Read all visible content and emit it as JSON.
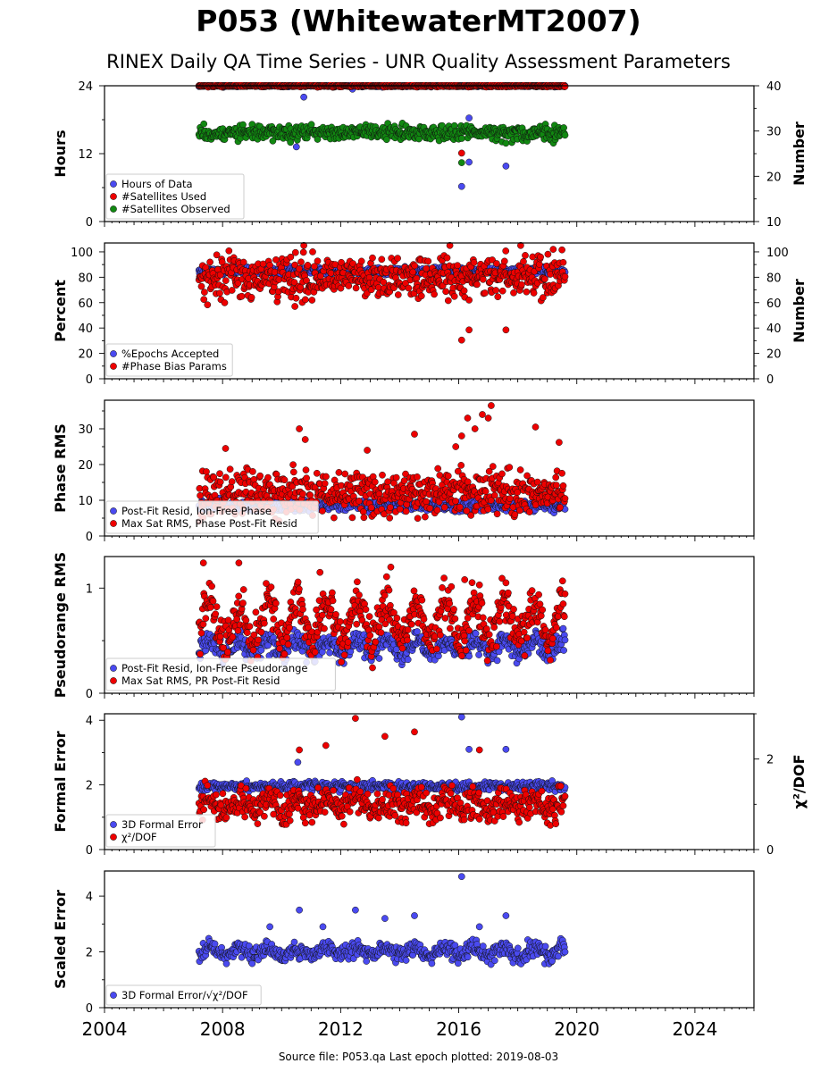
{
  "title": "P053 (WhitewaterMT2007)",
  "subtitle": "RINEX Daily QA Time Series - UNR Quality Assessment Parameters",
  "footer": "Source file: P053.qa Last epoch plotted: 2019-08-03",
  "colors": {
    "blue": "#4a4af0",
    "red": "#ee0000",
    "green": "#118811"
  },
  "chart_data": [
    {
      "type": "scatter",
      "xlim": [
        2004,
        2026
      ],
      "xticks": [
        2004,
        2008,
        2012,
        2016,
        2020,
        2024
      ],
      "ylabel": "Hours",
      "ylim": [
        0,
        24
      ],
      "yticks": [
        0,
        12,
        24
      ],
      "ylabel_right": "Number",
      "ylim_right": [
        10,
        40
      ],
      "yticks_right": [
        10,
        20,
        30,
        40
      ],
      "legend": [
        "Hours of Data",
        "#Satellites Used",
        "#Satellites Observed"
      ],
      "legend_placement": "lower-left",
      "series": [
        {
          "name": "Hours of Data",
          "color": "blue",
          "axis": "left",
          "x_range": [
            2007.2,
            2019.6
          ],
          "typical": 24,
          "spread": 0.1,
          "outliers": [
            [
              2010.75,
              22.0
            ],
            [
              2012.4,
              23.4
            ],
            [
              2016.1,
              6.2
            ],
            [
              2016.35,
              18.3
            ],
            [
              2016.35,
              10.5
            ],
            [
              2017.6,
              9.8
            ],
            [
              2010.5,
              13.2
            ]
          ]
        },
        {
          "name": "#Satellites Used",
          "color": "red",
          "axis": "left",
          "x_range": [
            2007.2,
            2019.6
          ],
          "typical": 24,
          "spread": 0.1,
          "outliers": [
            [
              2016.1,
              12.1
            ],
            [
              2009.7,
              16.0
            ]
          ]
        },
        {
          "name": "#Satellites Observed",
          "color": "green",
          "axis": "right",
          "x_range": [
            2007.2,
            2019.6
          ],
          "typical": 29.6,
          "spread": 0.8,
          "outliers": [
            [
              2016.1,
              23.0
            ],
            [
              2017.6,
              27.3
            ],
            [
              2010.3,
              27.5
            ],
            [
              2009.7,
              27.8
            ]
          ]
        }
      ]
    },
    {
      "type": "scatter",
      "xlim": [
        2004,
        2026
      ],
      "xticks": [
        2004,
        2008,
        2012,
        2016,
        2020,
        2024
      ],
      "ylabel": "Percent",
      "ylim": [
        0,
        107
      ],
      "yticks": [
        0,
        20,
        40,
        60,
        80,
        100
      ],
      "ylabel_right": "Number",
      "ylim_right": [
        0,
        107
      ],
      "yticks_right": [
        0,
        20,
        40,
        60,
        80,
        100
      ],
      "legend": [
        "%Epochs Accepted",
        "#Phase Bias Params"
      ],
      "legend_placement": "lower-left",
      "series": [
        {
          "name": "%Epochs Accepted",
          "color": "blue",
          "axis": "left",
          "x_range": [
            2007.2,
            2019.6
          ],
          "typical": 85,
          "spread": 1.5,
          "outliers": []
        },
        {
          "name": "#Phase Bias Params",
          "color": "red",
          "axis": "right",
          "x_range": [
            2007.2,
            2019.6
          ],
          "typical": 80,
          "spread": 8,
          "outliers": [
            [
              2016.1,
              30.5
            ],
            [
              2016.35,
              38.5
            ],
            [
              2017.6,
              38.5
            ],
            [
              2016.35,
              62
            ],
            [
              2010.45,
              57
            ],
            [
              2010.75,
              105
            ],
            [
              2015.7,
              105
            ],
            [
              2018.1,
              105
            ],
            [
              2019.2,
              102
            ]
          ]
        }
      ]
    },
    {
      "type": "scatter",
      "xlim": [
        2004,
        2026
      ],
      "xticks": [
        2004,
        2008,
        2012,
        2016,
        2020,
        2024
      ],
      "ylabel": "Phase RMS",
      "ylim": [
        0,
        38
      ],
      "yticks": [
        0,
        10,
        20,
        30
      ],
      "legend": [
        "Post-Fit Resid, Ion-Free Phase",
        "Max Sat RMS, Phase Post-Fit Resid"
      ],
      "legend_placement": "lower-left",
      "series": [
        {
          "name": "Post-Fit Resid, Ion-Free Phase",
          "color": "blue",
          "axis": "left",
          "x_range": [
            2007.2,
            2019.6
          ],
          "typical": 8.5,
          "spread": 0.8,
          "outliers": []
        },
        {
          "name": "Max Sat RMS, Phase Post-Fit Resid",
          "color": "red",
          "axis": "left",
          "x_range": [
            2007.2,
            2019.6
          ],
          "typical": 12,
          "spread": 3,
          "outliers": [
            [
              2010.6,
              30
            ],
            [
              2010.8,
              27
            ],
            [
              2014.5,
              28.5
            ],
            [
              2016.1,
              28
            ],
            [
              2016.3,
              33
            ],
            [
              2016.55,
              30
            ],
            [
              2016.8,
              34
            ],
            [
              2017.0,
              33
            ],
            [
              2017.1,
              36.5
            ],
            [
              2018.6,
              30.5
            ],
            [
              2019.4,
              26.2
            ],
            [
              2008.1,
              24.5
            ],
            [
              2012.9,
              24
            ],
            [
              2015.9,
              25
            ]
          ]
        }
      ]
    },
    {
      "type": "scatter",
      "xlim": [
        2004,
        2026
      ],
      "xticks": [
        2004,
        2008,
        2012,
        2016,
        2020,
        2024
      ],
      "ylabel": "Pseudorange RMS",
      "ylim": [
        0,
        1.3
      ],
      "yticks": [
        0,
        1
      ],
      "legend": [
        "Post-Fit Resid, Ion-Free Pseudorange",
        "Max Sat RMS, PR Post-Fit Resid"
      ],
      "legend_placement": "lower-left",
      "series": [
        {
          "name": "Post-Fit Resid, Ion-Free Pseudorange",
          "color": "blue",
          "axis": "left",
          "x_range": [
            2007.2,
            2019.6
          ],
          "typical": 0.44,
          "spread": 0.05,
          "seasonal": 0.06,
          "outliers": []
        },
        {
          "name": "Max Sat RMS, PR Post-Fit Resid",
          "color": "red",
          "axis": "left",
          "x_range": [
            2007.2,
            2019.6
          ],
          "typical": 0.68,
          "spread": 0.1,
          "seasonal": 0.18,
          "outliers": [
            [
              2007.35,
              1.24
            ],
            [
              2008.55,
              1.24
            ],
            [
              2013.7,
              1.2
            ],
            [
              2016.2,
              1.08
            ],
            [
              2016.7,
              1.03
            ],
            [
              2017.6,
              1.05
            ],
            [
              2011.3,
              1.15
            ]
          ]
        }
      ]
    },
    {
      "type": "scatter",
      "xlim": [
        2004,
        2026
      ],
      "xticks": [
        2004,
        2008,
        2012,
        2016,
        2020,
        2024
      ],
      "ylabel": "Formal Error",
      "ylim": [
        0,
        4.2
      ],
      "yticks": [
        0,
        2,
        4
      ],
      "ylabel_right": "χ²/DOF",
      "ylim_right": [
        0,
        3.0
      ],
      "yticks_right": [
        0,
        2
      ],
      "legend": [
        "3D Formal Error",
        "χ²/DOF"
      ],
      "legend_placement": "lower-left",
      "series": [
        {
          "name": "3D Formal Error",
          "color": "blue",
          "axis": "left",
          "x_range": [
            2007.2,
            2019.6
          ],
          "typical": 1.95,
          "spread": 0.07,
          "outliers": [
            [
              2016.1,
              4.1
            ],
            [
              2016.35,
              3.1
            ],
            [
              2017.6,
              3.1
            ],
            [
              2010.55,
              2.7
            ]
          ]
        },
        {
          "name": "χ²/DOF",
          "color": "red",
          "axis": "right",
          "x_range": [
            2007.2,
            2019.6
          ],
          "typical": 1.0,
          "spread": 0.17,
          "seasonal": 0.12,
          "outliers": [
            [
              2012.5,
              2.9
            ],
            [
              2014.5,
              2.6
            ],
            [
              2011.5,
              2.3
            ],
            [
              2013.5,
              2.5
            ],
            [
              2010.6,
              2.2
            ],
            [
              2016.7,
              2.2
            ]
          ]
        }
      ]
    },
    {
      "type": "scatter",
      "xlim": [
        2004,
        2026
      ],
      "xticks": [
        2004,
        2008,
        2012,
        2016,
        2020,
        2024
      ],
      "xticklabels": [
        "2004",
        "2008",
        "2012",
        "2016",
        "2020",
        "2024"
      ],
      "ylabel": "Scaled Error",
      "ylim": [
        0,
        4.9
      ],
      "yticks": [
        0,
        2,
        4
      ],
      "legend": [
        "3D Formal Error/√χ²/DOF"
      ],
      "legend_placement": "lower-left",
      "series": [
        {
          "name": "3D Formal Error/√χ²/DOF",
          "color": "blue",
          "axis": "left",
          "x_range": [
            2007.2,
            2019.6
          ],
          "typical": 2.0,
          "spread": 0.15,
          "seasonal": 0.15,
          "outliers": [
            [
              2016.1,
              4.7
            ],
            [
              2010.6,
              3.5
            ],
            [
              2012.5,
              3.5
            ],
            [
              2014.5,
              3.3
            ],
            [
              2017.6,
              3.3
            ],
            [
              2013.5,
              3.2
            ],
            [
              2016.7,
              2.9
            ],
            [
              2009.6,
              2.9
            ],
            [
              2011.4,
              2.9
            ]
          ]
        }
      ]
    }
  ]
}
